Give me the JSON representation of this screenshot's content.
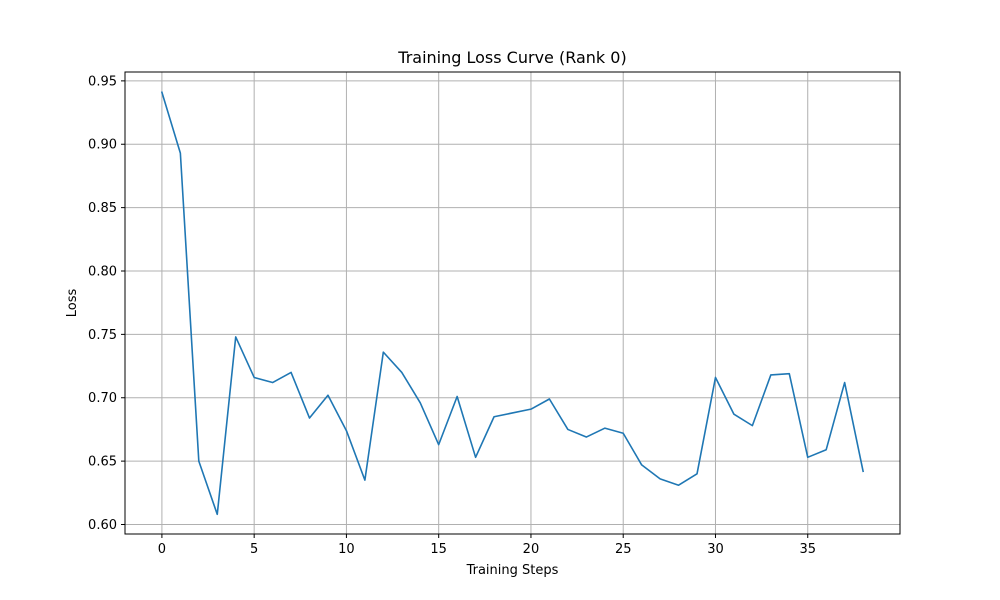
{
  "chart_data": {
    "type": "line",
    "title": "Training Loss Curve (Rank 0)",
    "xlabel": "Training Steps",
    "ylabel": "Loss",
    "xlim": [
      -2,
      40
    ],
    "ylim": [
      0.5925,
      0.957
    ],
    "xticks": [
      0,
      5,
      10,
      15,
      20,
      25,
      30,
      35
    ],
    "xtick_labels": [
      "0",
      "5",
      "10",
      "15",
      "20",
      "25",
      "30",
      "35"
    ],
    "yticks": [
      0.6,
      0.65,
      0.7,
      0.75,
      0.8,
      0.85,
      0.9,
      0.95
    ],
    "ytick_labels": [
      "0.60",
      "0.65",
      "0.70",
      "0.75",
      "0.80",
      "0.85",
      "0.90",
      "0.95"
    ],
    "grid": true,
    "line_color": "#1f77b4",
    "series": [
      {
        "x": [
          0,
          1,
          2,
          3,
          4,
          5,
          6,
          7,
          8,
          9,
          10,
          11,
          12,
          13,
          14,
          15,
          16,
          17,
          18,
          19,
          20,
          21,
          22,
          23,
          24,
          25,
          26,
          27,
          28,
          29,
          30,
          31,
          32,
          33,
          34,
          35,
          36,
          37,
          38
        ],
        "values": [
          0.941,
          0.893,
          0.65,
          0.608,
          0.748,
          0.716,
          0.712,
          0.72,
          0.684,
          0.702,
          0.674,
          0.635,
          0.736,
          0.72,
          0.696,
          0.663,
          0.701,
          0.653,
          0.685,
          0.688,
          0.691,
          0.699,
          0.675,
          0.669,
          0.676,
          0.672,
          0.647,
          0.636,
          0.631,
          0.64,
          0.716,
          0.687,
          0.678,
          0.718,
          0.719,
          0.653,
          0.659,
          0.712,
          0.642
        ]
      }
    ]
  }
}
